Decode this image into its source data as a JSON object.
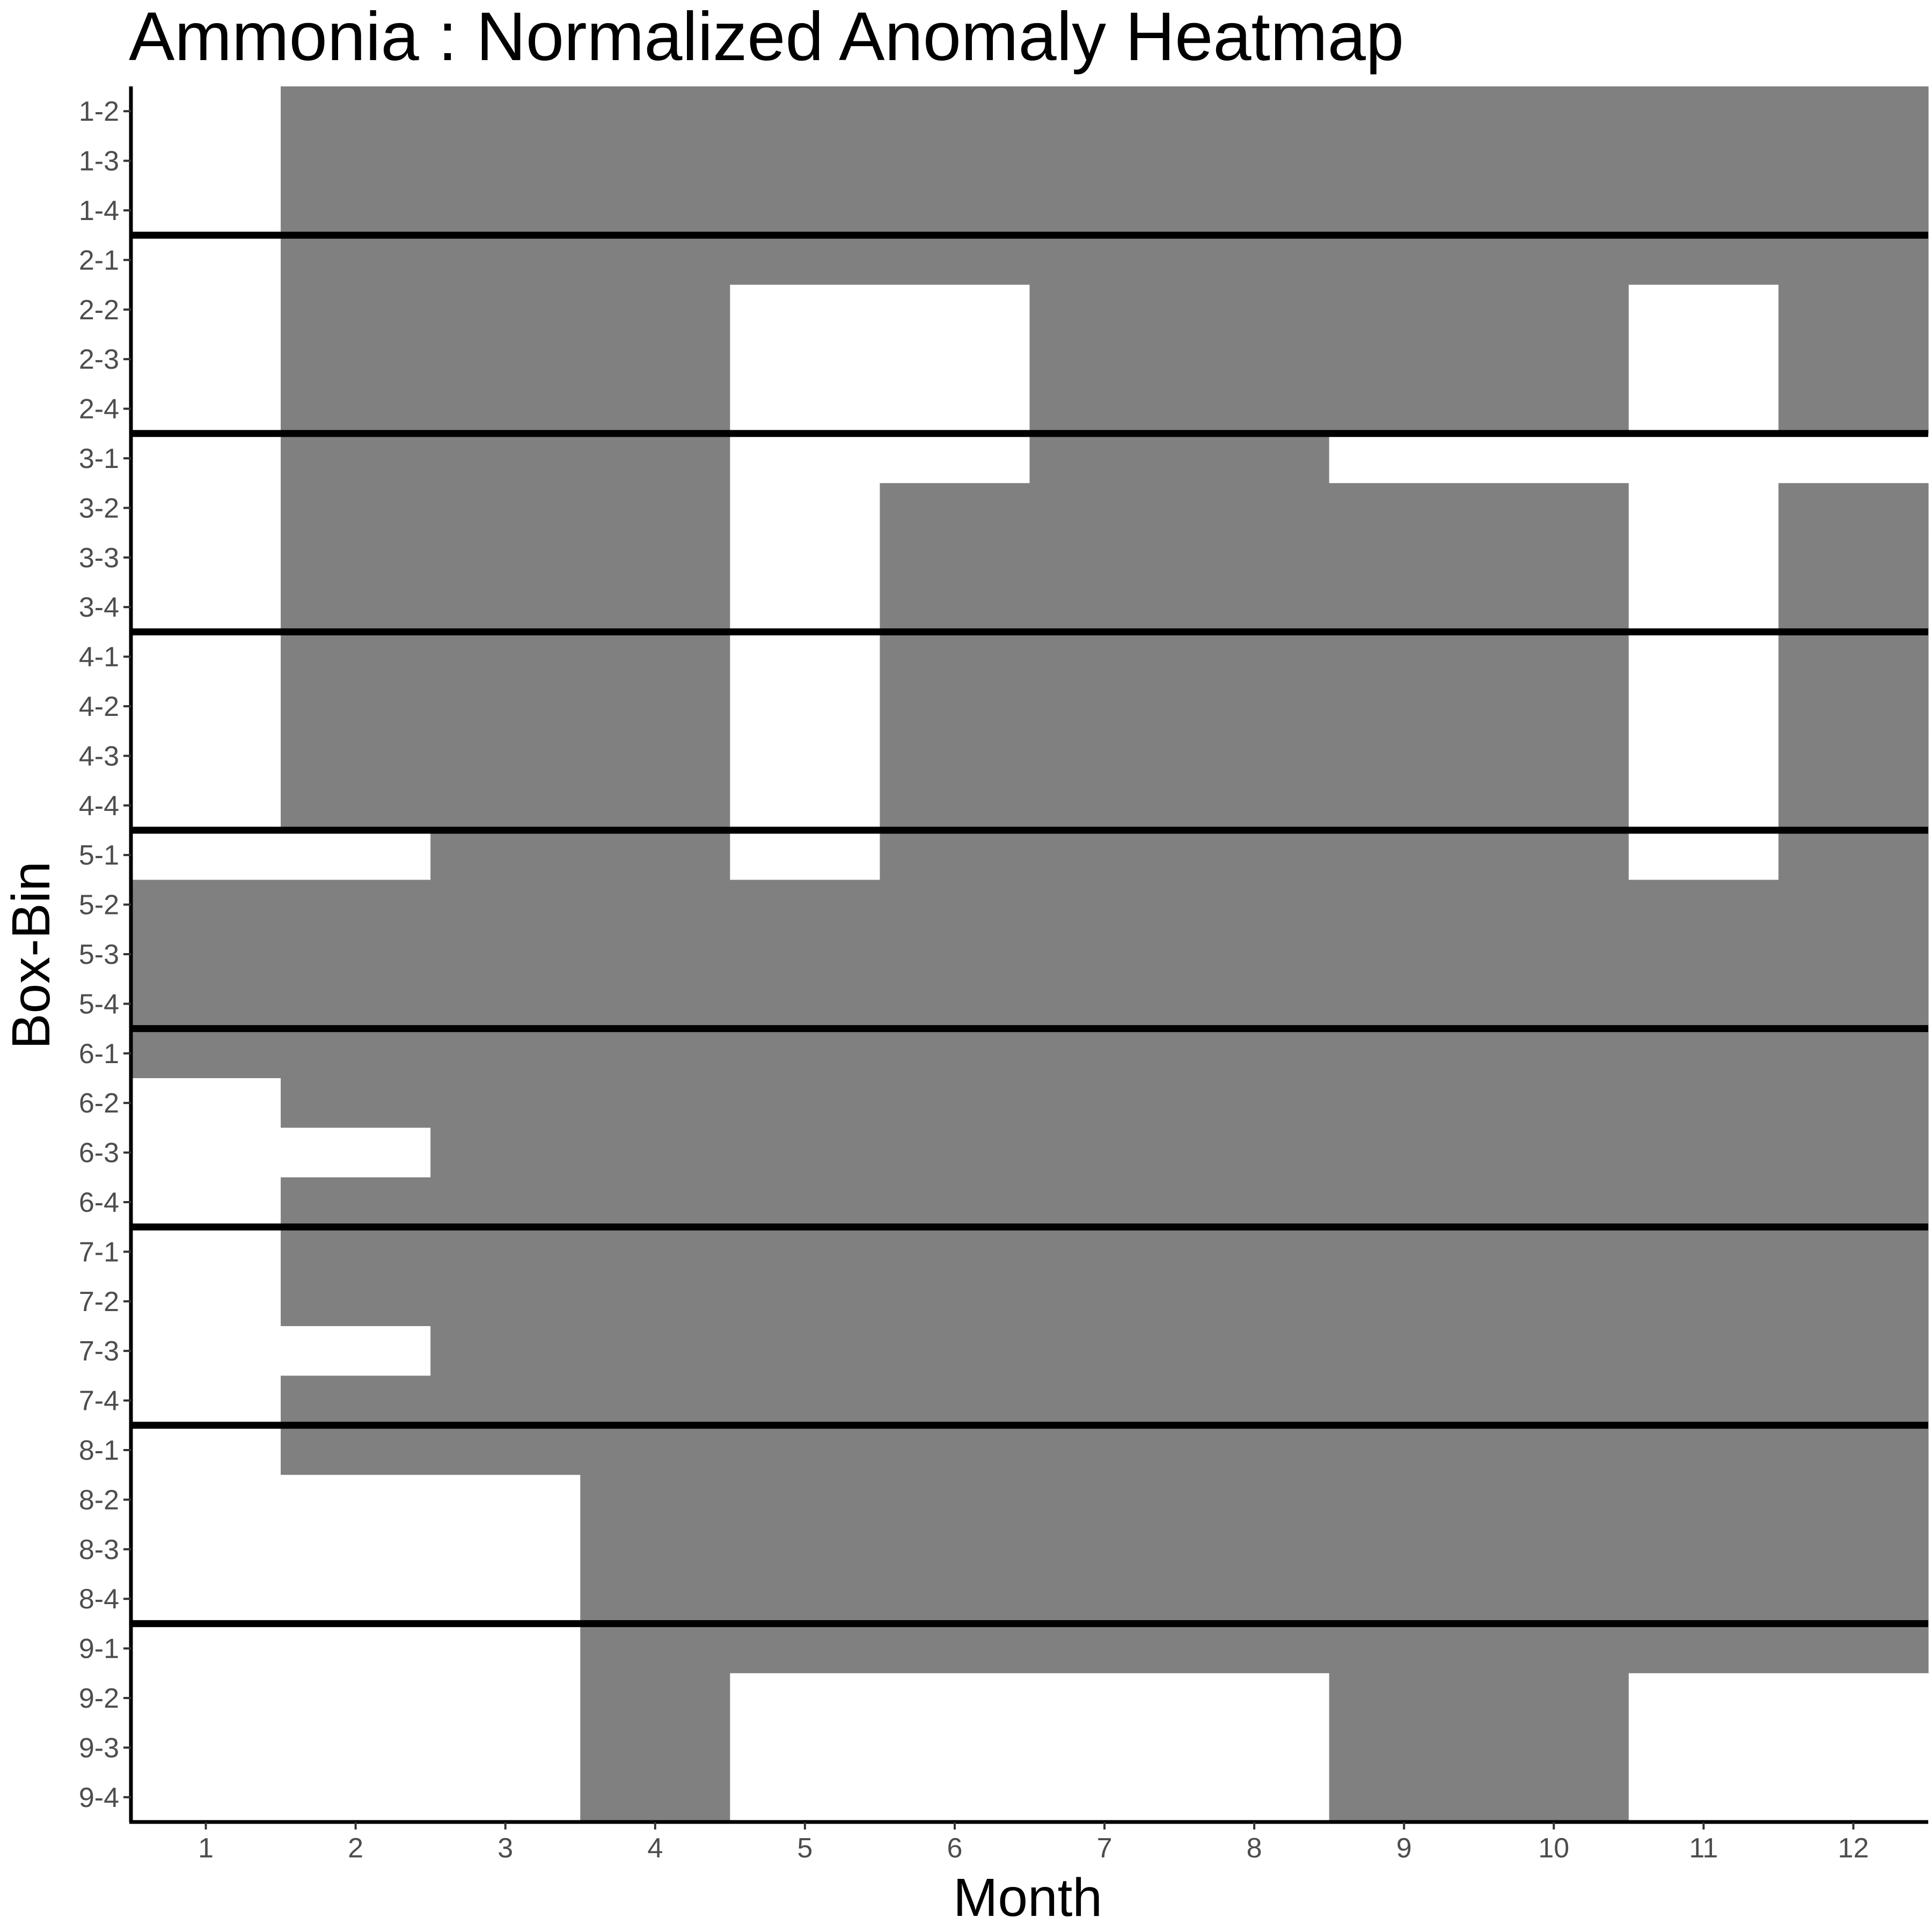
{
  "chart_data": {
    "type": "heatmap",
    "title": "Ammonia : Normalized Anomaly Heatmap",
    "xlabel": "Month",
    "ylabel": "Box-Bin",
    "x": [
      1,
      2,
      3,
      4,
      5,
      6,
      7,
      8,
      9,
      10,
      11,
      12
    ],
    "y": [
      "1-2",
      "1-3",
      "1-4",
      "2-1",
      "2-2",
      "2-3",
      "2-4",
      "3-1",
      "3-2",
      "3-3",
      "3-4",
      "4-1",
      "4-2",
      "4-3",
      "4-4",
      "5-1",
      "5-2",
      "5-3",
      "5-4",
      "6-1",
      "6-2",
      "6-3",
      "6-4",
      "7-1",
      "7-2",
      "7-3",
      "7-4",
      "8-1",
      "8-2",
      "8-3",
      "8-4",
      "9-1",
      "9-2",
      "9-3",
      "9-4"
    ],
    "values": [
      [
        0,
        1,
        1,
        1,
        1,
        1,
        1,
        1,
        1,
        1,
        1,
        1
      ],
      [
        0,
        1,
        1,
        1,
        1,
        1,
        1,
        1,
        1,
        1,
        1,
        1
      ],
      [
        0,
        1,
        1,
        1,
        1,
        1,
        1,
        1,
        1,
        1,
        1,
        1
      ],
      [
        0,
        1,
        1,
        1,
        1,
        1,
        1,
        1,
        1,
        1,
        1,
        1
      ],
      [
        0,
        1,
        1,
        1,
        0,
        0,
        1,
        1,
        1,
        1,
        0,
        1
      ],
      [
        0,
        1,
        1,
        1,
        0,
        0,
        1,
        1,
        1,
        1,
        0,
        1
      ],
      [
        0,
        1,
        1,
        1,
        0,
        0,
        1,
        1,
        1,
        1,
        0,
        1
      ],
      [
        0,
        1,
        1,
        1,
        0,
        0,
        1,
        1,
        0,
        0,
        0,
        0
      ],
      [
        0,
        1,
        1,
        1,
        0,
        1,
        1,
        1,
        1,
        1,
        0,
        1
      ],
      [
        0,
        1,
        1,
        1,
        0,
        1,
        1,
        1,
        1,
        1,
        0,
        1
      ],
      [
        0,
        1,
        1,
        1,
        0,
        1,
        1,
        1,
        1,
        1,
        0,
        1
      ],
      [
        0,
        1,
        1,
        1,
        0,
        1,
        1,
        1,
        1,
        1,
        0,
        1
      ],
      [
        0,
        1,
        1,
        1,
        0,
        1,
        1,
        1,
        1,
        1,
        0,
        1
      ],
      [
        0,
        1,
        1,
        1,
        0,
        1,
        1,
        1,
        1,
        1,
        0,
        1
      ],
      [
        0,
        1,
        1,
        1,
        0,
        1,
        1,
        1,
        1,
        1,
        0,
        1
      ],
      [
        0,
        0,
        1,
        1,
        0,
        1,
        1,
        1,
        1,
        1,
        0,
        1
      ],
      [
        1,
        1,
        1,
        1,
        1,
        1,
        1,
        1,
        1,
        1,
        1,
        1
      ],
      [
        1,
        1,
        1,
        1,
        1,
        1,
        1,
        1,
        1,
        1,
        1,
        1
      ],
      [
        1,
        1,
        1,
        1,
        1,
        1,
        1,
        1,
        1,
        1,
        1,
        1
      ],
      [
        1,
        1,
        1,
        1,
        1,
        1,
        1,
        1,
        1,
        1,
        1,
        1
      ],
      [
        0,
        1,
        1,
        1,
        1,
        1,
        1,
        1,
        1,
        1,
        1,
        1
      ],
      [
        0,
        0,
        1,
        1,
        1,
        1,
        1,
        1,
        1,
        1,
        1,
        1
      ],
      [
        0,
        1,
        1,
        1,
        1,
        1,
        1,
        1,
        1,
        1,
        1,
        1
      ],
      [
        0,
        1,
        1,
        1,
        1,
        1,
        1,
        1,
        1,
        1,
        1,
        1
      ],
      [
        0,
        1,
        1,
        1,
        1,
        1,
        1,
        1,
        1,
        1,
        1,
        1
      ],
      [
        0,
        0,
        1,
        1,
        1,
        1,
        1,
        1,
        1,
        1,
        1,
        1
      ],
      [
        0,
        1,
        1,
        1,
        1,
        1,
        1,
        1,
        1,
        1,
        1,
        1
      ],
      [
        0,
        1,
        1,
        1,
        1,
        1,
        1,
        1,
        1,
        1,
        1,
        1
      ],
      [
        0,
        0,
        0,
        1,
        1,
        1,
        1,
        1,
        1,
        1,
        1,
        1
      ],
      [
        0,
        0,
        0,
        1,
        1,
        1,
        1,
        1,
        1,
        1,
        1,
        1
      ],
      [
        0,
        0,
        0,
        1,
        1,
        1,
        1,
        1,
        1,
        1,
        1,
        1
      ],
      [
        0,
        0,
        0,
        1,
        1,
        1,
        1,
        1,
        1,
        1,
        1,
        1
      ],
      [
        0,
        0,
        0,
        1,
        0,
        0,
        0,
        0,
        1,
        1,
        0,
        0
      ],
      [
        0,
        0,
        0,
        1,
        0,
        0,
        0,
        0,
        1,
        1,
        0,
        0
      ],
      [
        0,
        0,
        0,
        1,
        0,
        0,
        0,
        0,
        1,
        1,
        0,
        0
      ]
    ],
    "cell_colors": {
      "filled": "#808080",
      "empty": "#ffffff"
    },
    "separator_after": [
      "1-4",
      "2-4",
      "3-4",
      "4-4",
      "5-4",
      "6-4",
      "7-4",
      "8-4"
    ],
    "separator_color": "#000000",
    "grid": false,
    "legend": "none"
  }
}
